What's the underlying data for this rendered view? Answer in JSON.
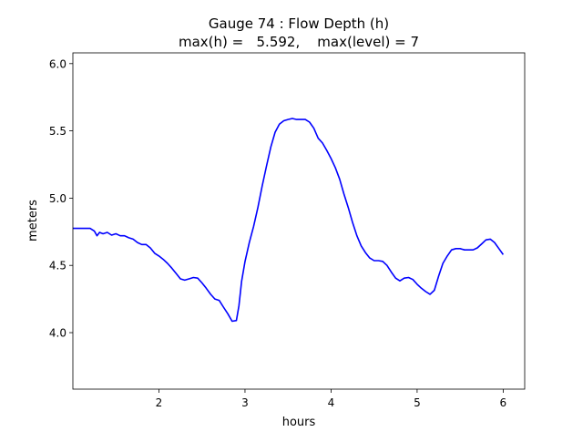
{
  "chart_data": {
    "type": "line",
    "title_line1": "Gauge 74 : Flow Depth (h)",
    "title_line2": "max(h) =   5.592,    max(level) = 7",
    "xlabel": "hours",
    "ylabel": "meters",
    "xlim": [
      1.0,
      6.25
    ],
    "ylim": [
      3.58,
      6.08
    ],
    "xticks": [
      2,
      3,
      4,
      5,
      6
    ],
    "yticks": [
      4.0,
      4.5,
      5.0,
      5.5,
      6.0
    ],
    "xtick_labels": [
      "2",
      "3",
      "4",
      "5",
      "6"
    ],
    "ytick_labels": [
      "4.0",
      "4.5",
      "5.0",
      "5.5",
      "6.0"
    ],
    "series": [
      {
        "color": "#0000ff",
        "points": [
          [
            1.0,
            4.775
          ],
          [
            1.1,
            4.775
          ],
          [
            1.2,
            4.775
          ],
          [
            1.25,
            4.755
          ],
          [
            1.28,
            4.72
          ],
          [
            1.31,
            4.745
          ],
          [
            1.35,
            4.735
          ],
          [
            1.4,
            4.745
          ],
          [
            1.45,
            4.725
          ],
          [
            1.5,
            4.735
          ],
          [
            1.55,
            4.72
          ],
          [
            1.6,
            4.72
          ],
          [
            1.65,
            4.705
          ],
          [
            1.7,
            4.695
          ],
          [
            1.75,
            4.67
          ],
          [
            1.8,
            4.655
          ],
          [
            1.85,
            4.655
          ],
          [
            1.9,
            4.63
          ],
          [
            1.95,
            4.59
          ],
          [
            2.0,
            4.57
          ],
          [
            2.05,
            4.545
          ],
          [
            2.1,
            4.515
          ],
          [
            2.15,
            4.48
          ],
          [
            2.2,
            4.44
          ],
          [
            2.25,
            4.4
          ],
          [
            2.3,
            4.39
          ],
          [
            2.35,
            4.4
          ],
          [
            2.4,
            4.41
          ],
          [
            2.45,
            4.405
          ],
          [
            2.5,
            4.37
          ],
          [
            2.55,
            4.33
          ],
          [
            2.6,
            4.285
          ],
          [
            2.65,
            4.25
          ],
          [
            2.7,
            4.24
          ],
          [
            2.75,
            4.19
          ],
          [
            2.8,
            4.14
          ],
          [
            2.85,
            4.085
          ],
          [
            2.9,
            4.09
          ],
          [
            2.93,
            4.2
          ],
          [
            2.96,
            4.38
          ],
          [
            3.0,
            4.53
          ],
          [
            3.05,
            4.67
          ],
          [
            3.1,
            4.79
          ],
          [
            3.15,
            4.93
          ],
          [
            3.2,
            5.09
          ],
          [
            3.25,
            5.24
          ],
          [
            3.3,
            5.38
          ],
          [
            3.35,
            5.49
          ],
          [
            3.4,
            5.55
          ],
          [
            3.45,
            5.575
          ],
          [
            3.5,
            5.585
          ],
          [
            3.55,
            5.592
          ],
          [
            3.6,
            5.585
          ],
          [
            3.65,
            5.585
          ],
          [
            3.7,
            5.585
          ],
          [
            3.75,
            5.565
          ],
          [
            3.8,
            5.52
          ],
          [
            3.85,
            5.445
          ],
          [
            3.9,
            5.41
          ],
          [
            3.95,
            5.355
          ],
          [
            4.0,
            5.295
          ],
          [
            4.05,
            5.225
          ],
          [
            4.1,
            5.14
          ],
          [
            4.15,
            5.03
          ],
          [
            4.2,
            4.93
          ],
          [
            4.25,
            4.82
          ],
          [
            4.3,
            4.72
          ],
          [
            4.35,
            4.645
          ],
          [
            4.4,
            4.595
          ],
          [
            4.45,
            4.555
          ],
          [
            4.5,
            4.535
          ],
          [
            4.55,
            4.535
          ],
          [
            4.6,
            4.53
          ],
          [
            4.65,
            4.5
          ],
          [
            4.7,
            4.45
          ],
          [
            4.75,
            4.405
          ],
          [
            4.8,
            4.385
          ],
          [
            4.85,
            4.405
          ],
          [
            4.9,
            4.41
          ],
          [
            4.95,
            4.395
          ],
          [
            5.0,
            4.36
          ],
          [
            5.05,
            4.33
          ],
          [
            5.1,
            4.305
          ],
          [
            5.15,
            4.285
          ],
          [
            5.2,
            4.315
          ],
          [
            5.25,
            4.42
          ],
          [
            5.3,
            4.515
          ],
          [
            5.35,
            4.57
          ],
          [
            5.4,
            4.615
          ],
          [
            5.45,
            4.625
          ],
          [
            5.5,
            4.625
          ],
          [
            5.55,
            4.615
          ],
          [
            5.6,
            4.615
          ],
          [
            5.65,
            4.615
          ],
          [
            5.7,
            4.63
          ],
          [
            5.75,
            4.66
          ],
          [
            5.8,
            4.69
          ],
          [
            5.85,
            4.695
          ],
          [
            5.9,
            4.67
          ],
          [
            5.95,
            4.625
          ],
          [
            6.0,
            4.58
          ]
        ]
      }
    ]
  }
}
